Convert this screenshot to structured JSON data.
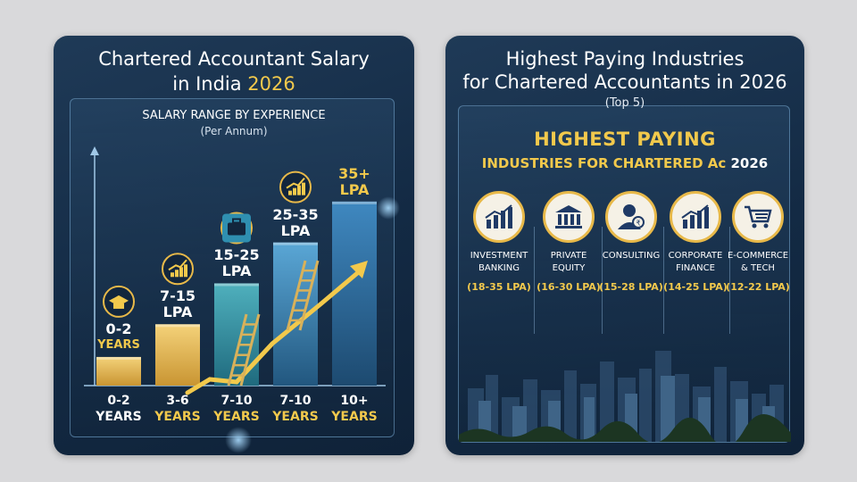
{
  "left_card": {
    "title_line1": "Chartered Accountant Salary",
    "title_line2_prefix": "in India",
    "title_year": "2026",
    "chart_title": "SALARY RANGE BY EXPERIENCE",
    "chart_subtitle": "(Per Annum)"
  },
  "chart_data": {
    "type": "bar",
    "title": "SALARY RANGE BY EXPERIENCE",
    "subtitle": "(Per Annum)",
    "categories": [
      {
        "num": "0-2",
        "unit": "YEARS"
      },
      {
        "num": "3-6",
        "unit": "YEARS"
      },
      {
        "num": "7-10",
        "unit": "YEARS"
      },
      {
        "num": "7-10",
        "unit": "YEARS"
      },
      {
        "num": "10+",
        "unit": "YEARS"
      }
    ],
    "labels": [
      {
        "l1": "0-2",
        "l2": "YEARS"
      },
      {
        "l1": "7-15",
        "l2": "LPA"
      },
      {
        "l1": "15-25",
        "l2": "LPA"
      },
      {
        "l1": "25-35",
        "l2": "LPA"
      },
      {
        "l1": "35+",
        "l2": "LPA"
      }
    ],
    "values": [
      7,
      15,
      25,
      35,
      45
    ],
    "ylim": [
      0,
      55
    ],
    "colors": [
      "#e8b949",
      "#e8b949",
      "#2e8fa3",
      "#3a87b5",
      "#2f6f9f"
    ],
    "label_colors": [
      "#f2c94c",
      "#ffffff",
      "#ffffff",
      "#ffffff",
      "#f2c94c"
    ],
    "icons": [
      "graduation-cap-icon",
      "growth-chart-icon",
      "briefcase-icon",
      "growth-chart-icon",
      ""
    ]
  },
  "right_card": {
    "title_line1": "Highest Paying Industries",
    "title_line2": "for Chartered Accountants in 2026",
    "top_label": "(Top 5)",
    "banner_line1": "HIGHEST PAYING",
    "banner_line2": "INDUSTRIES FOR CHARTERED Ac",
    "banner_year": "2026",
    "industries": [
      {
        "name1": "INVESTMENT",
        "name2": "BANKING",
        "range": "(18-35 LPA)",
        "icon": "bar-chart-icon"
      },
      {
        "name1": "PRIVATE",
        "name2": "EQUITY",
        "range": "(16-30 LPA)",
        "icon": "bank-building-icon"
      },
      {
        "name1": "CONSULTING",
        "name2": "",
        "range": "(15-28 LPA)",
        "icon": "consultant-icon"
      },
      {
        "name1": "CORPORATE",
        "name2": "FINANCE",
        "range": "(14-25 LPA)",
        "icon": "bar-chart-icon"
      },
      {
        "name1": "E-COMMERCE",
        "name2": "& TECH",
        "range": "(12-22 LPA)",
        "icon": "shopping-cart-icon"
      }
    ]
  }
}
